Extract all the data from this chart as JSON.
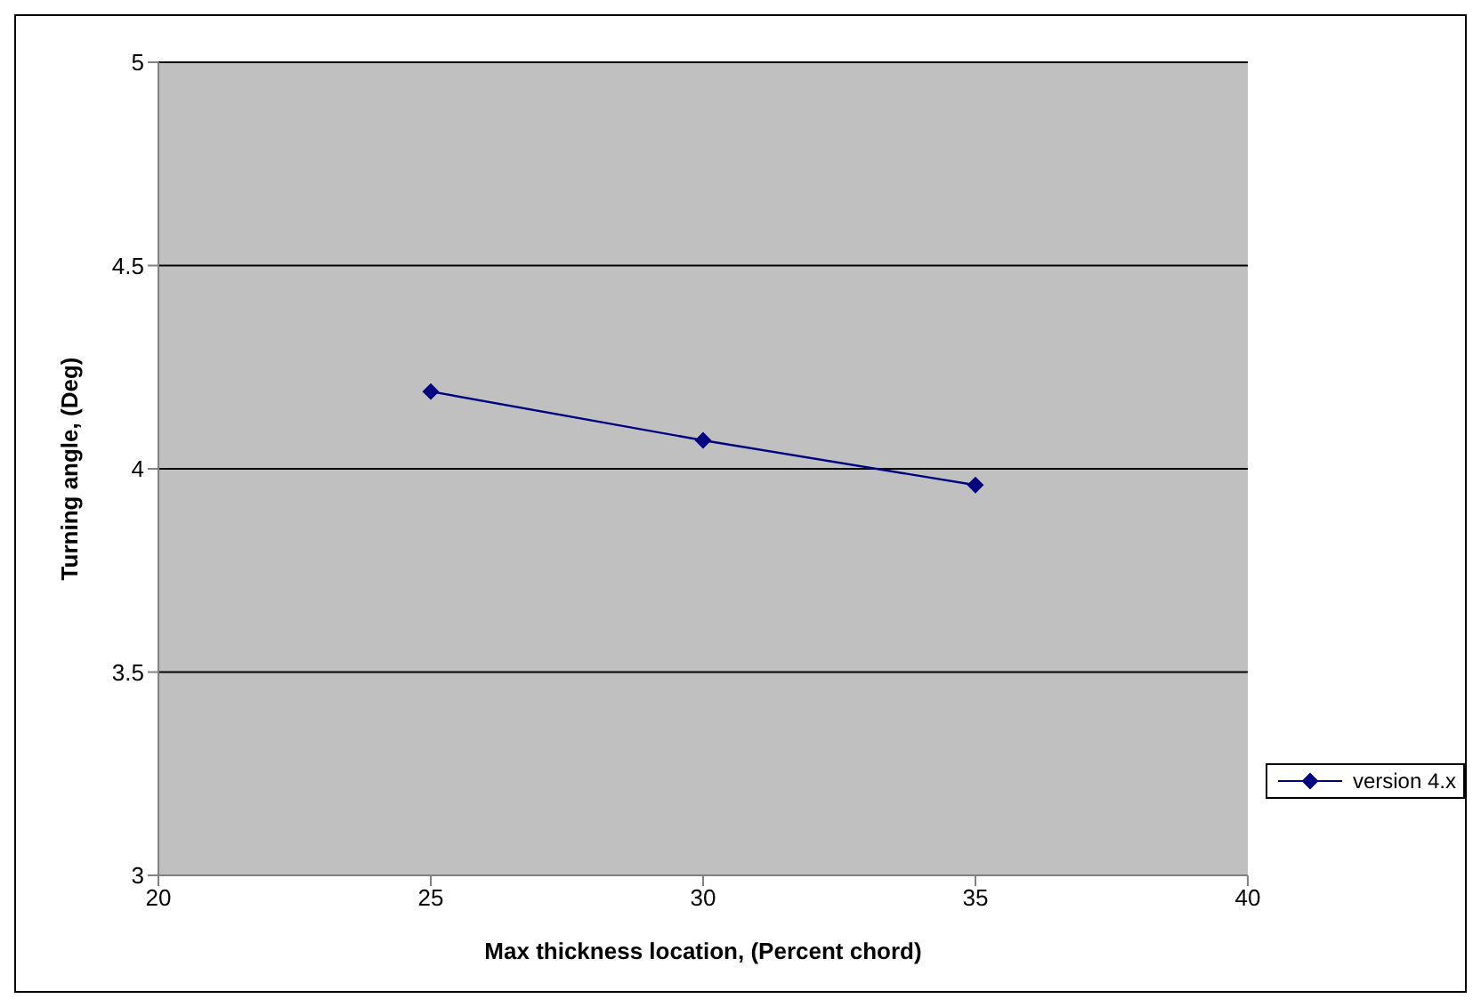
{
  "chart_data": {
    "type": "line",
    "xlabel": "Max thickness location, (Percent chord)",
    "ylabel": "Turning angle, (Deg)",
    "x": [
      25,
      30,
      35
    ],
    "series": [
      {
        "name": "version 4.x",
        "color": "#000080",
        "values": [
          4.19,
          4.07,
          3.96
        ]
      }
    ],
    "xlim": [
      20,
      40
    ],
    "xticks": [
      20,
      25,
      30,
      35,
      40
    ],
    "ylim": [
      3,
      5
    ],
    "yticks": [
      3,
      3.5,
      4,
      4.5,
      5
    ],
    "grid": "y",
    "legend": "right",
    "marker": "diamond",
    "line_style": "solid"
  }
}
